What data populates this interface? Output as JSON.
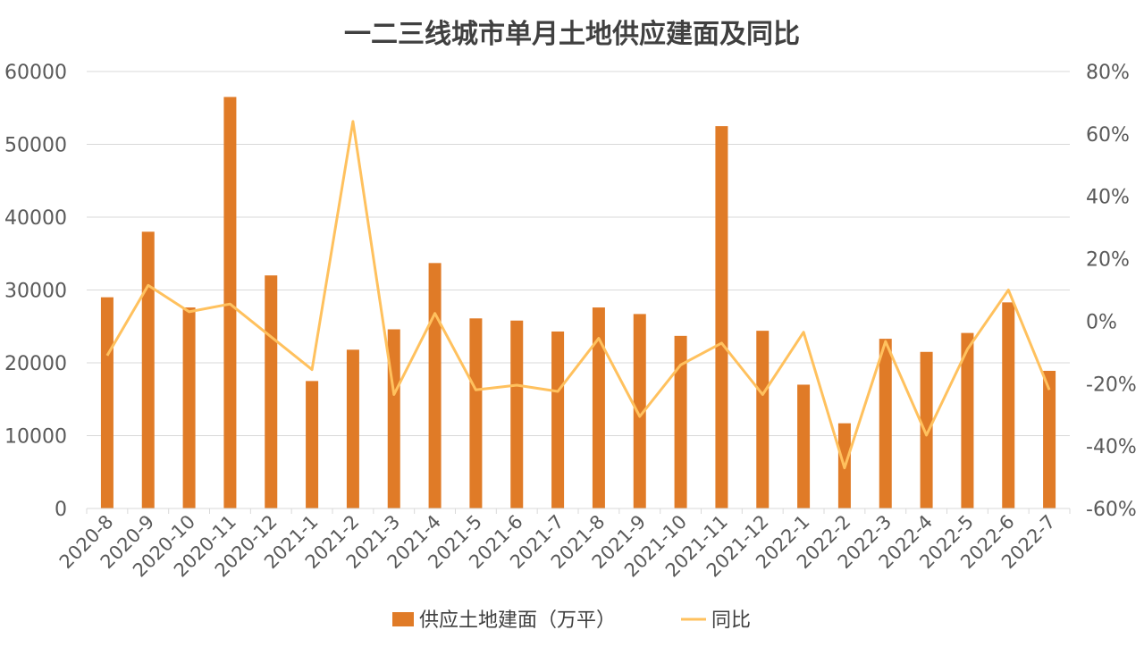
{
  "chart_data": {
    "type": "bar",
    "title": "一二三线城市单月土地供应建面及同比",
    "categories": [
      "2020-8",
      "2020-9",
      "2020-10",
      "2020-11",
      "2020-12",
      "2021-1",
      "2021-2",
      "2021-3",
      "2021-4",
      "2021-5",
      "2021-6",
      "2021-7",
      "2021-8",
      "2021-9",
      "2021-10",
      "2021-11",
      "2021-12",
      "2022-1",
      "2022-2",
      "2022-3",
      "2022-4",
      "2022-5",
      "2022-6",
      "2022-7"
    ],
    "series": [
      {
        "name": "供应土地建面（万平）",
        "type": "bar",
        "axis": "left",
        "color": "#E07B27",
        "values": [
          29000,
          38000,
          27600,
          56500,
          32000,
          17500,
          21800,
          24600,
          33700,
          26100,
          25800,
          24300,
          27600,
          26700,
          23700,
          52500,
          24400,
          17000,
          11700,
          23300,
          21500,
          24100,
          28300,
          18900
        ]
      },
      {
        "name": "同比",
        "type": "line",
        "axis": "right",
        "color": "#FFC15E",
        "values": [
          -0.11,
          0.115,
          0.03,
          0.055,
          -0.05,
          -0.155,
          0.64,
          -0.235,
          0.025,
          -0.22,
          -0.205,
          -0.225,
          -0.055,
          -0.305,
          -0.14,
          -0.07,
          -0.235,
          -0.035,
          -0.47,
          -0.065,
          -0.365,
          -0.09,
          0.1,
          -0.22
        ]
      }
    ],
    "y_left": {
      "min": 0,
      "max": 60000,
      "ticks": [
        "0",
        "10000",
        "20000",
        "30000",
        "40000",
        "50000",
        "60000"
      ]
    },
    "y_right": {
      "min": -0.6,
      "max": 0.8,
      "ticks": [
        "-60%",
        "-40%",
        "-20%",
        "0%",
        "20%",
        "40%",
        "60%",
        "80%"
      ]
    },
    "grid": true,
    "legend_position": "bottom"
  }
}
